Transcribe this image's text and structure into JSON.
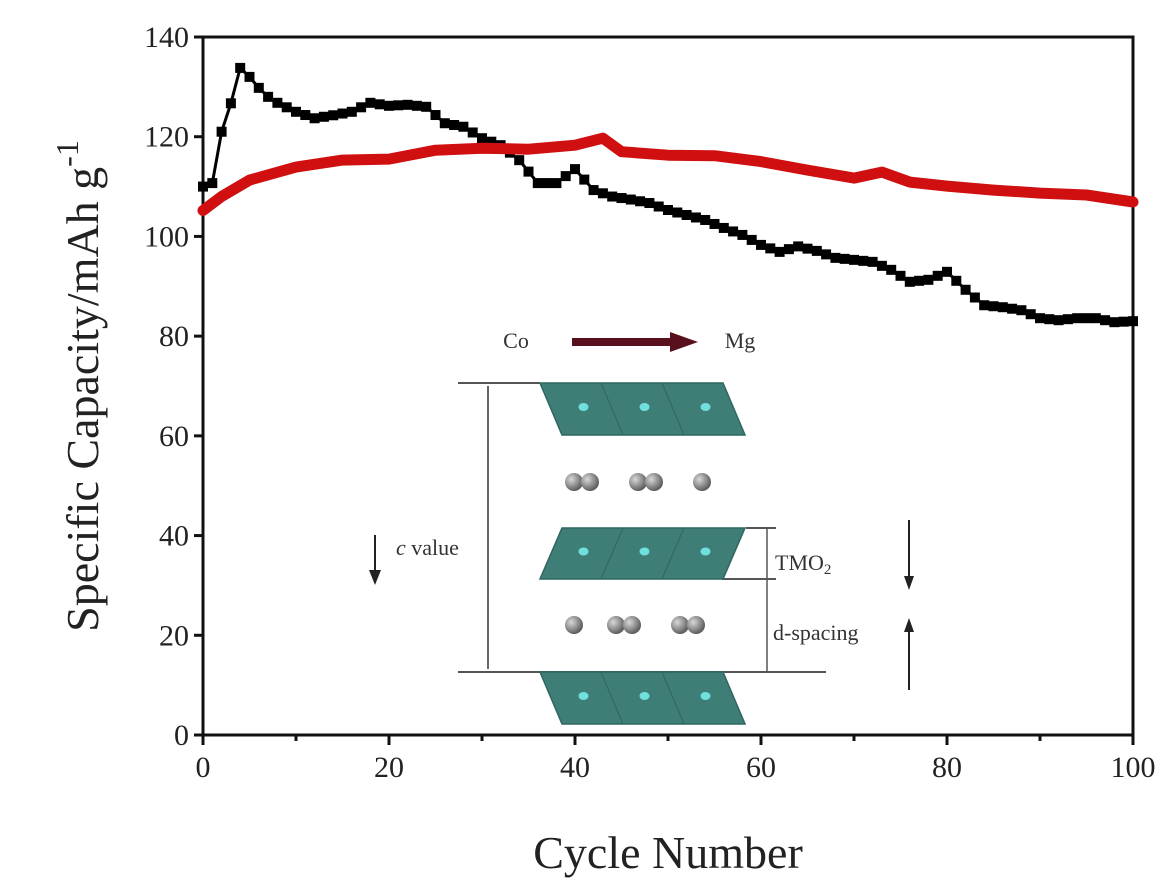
{
  "chart_data": {
    "type": "line",
    "title": "",
    "xlabel": "Cycle Number",
    "ylabel": "Specific Capacity/mAh g",
    "ylabel_superscript": "-1",
    "xlim": [
      0,
      100
    ],
    "ylim": [
      0,
      140
    ],
    "xticks": [
      0,
      20,
      40,
      60,
      80,
      100
    ],
    "yticks": [
      0,
      20,
      40,
      60,
      80,
      100,
      120,
      140
    ],
    "x_minor_step": 10,
    "grid": false,
    "legend": null,
    "series": [
      {
        "name": "black",
        "color": "#000000",
        "marker": "square",
        "x": [
          0,
          1,
          2,
          3,
          4,
          5,
          6,
          7,
          8,
          10,
          12,
          14,
          16,
          18,
          20,
          22,
          24,
          26,
          28,
          30,
          32,
          34,
          36,
          38,
          40,
          42,
          44,
          46,
          48,
          50,
          52,
          54,
          56,
          58,
          60,
          62,
          64,
          66,
          68,
          70,
          72,
          74,
          76,
          78,
          80,
          82,
          84,
          86,
          88,
          90,
          92,
          94,
          96,
          98,
          100
        ],
        "y": [
          110,
          110.7,
          121,
          126.7,
          133.8,
          132,
          129.8,
          128,
          126.8,
          125,
          123.7,
          124.3,
          125,
          126.8,
          126.2,
          126.4,
          126,
          122.7,
          122,
          119.7,
          118.3,
          115.3,
          110.7,
          110.7,
          113.5,
          109.3,
          108,
          107.4,
          106.7,
          105.3,
          104.3,
          103.3,
          101.7,
          100.3,
          98.3,
          96.9,
          98,
          97.1,
          95.7,
          95.3,
          94.9,
          93.3,
          90.9,
          91.3,
          92.9,
          89.3,
          86.2,
          85.8,
          85.2,
          83.6,
          83.2,
          83.6,
          83.6,
          82.8,
          83
        ]
      },
      {
        "name": "red",
        "color": "#d01010",
        "marker": "circle",
        "x": [
          0,
          2,
          5,
          10,
          15,
          20,
          25,
          30,
          35,
          40,
          43,
          45,
          50,
          55,
          60,
          65,
          70,
          73,
          76,
          80,
          85,
          90,
          95,
          100
        ],
        "y": [
          105.2,
          108,
          111.3,
          113.9,
          115.3,
          115.5,
          117.3,
          117.7,
          117.5,
          118.3,
          119.7,
          117,
          116.3,
          116.2,
          115,
          113.3,
          111.7,
          112.9,
          110.9,
          110.1,
          109.3,
          108.7,
          108.3,
          106.9
        ]
      }
    ],
    "inset": {
      "arrow_from": "Co",
      "arrow_to": "Mg",
      "labels": {
        "c_value_italic": "c",
        "c_value": " value",
        "tmo2": "TMO",
        "tmo2_sub": "2",
        "d_spacing": "d-spacing"
      },
      "colors": {
        "layer": "#3f7d77",
        "layer_dark": "#2f6660",
        "center_atom": "#6fe0dd",
        "ion": "#7a7a7a",
        "arrow": "#5a0f1c",
        "mg_text": "#c8284a"
      }
    }
  }
}
